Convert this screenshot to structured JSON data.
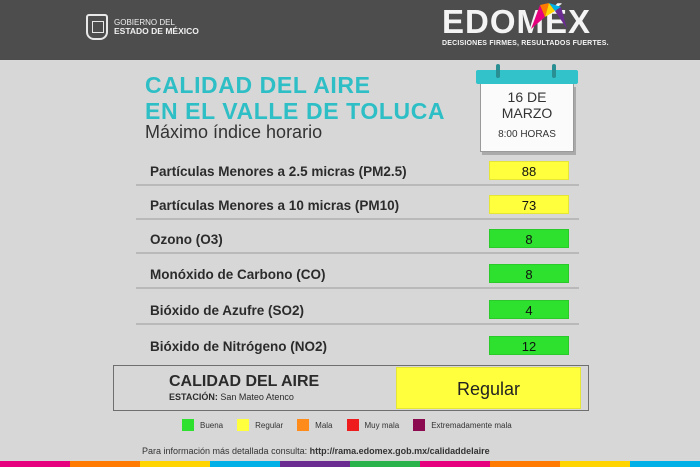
{
  "header": {
    "gov_line1": "GOBIERNO DEL",
    "gov_line2": "ESTADO DE MÉXICO",
    "brand": "EDOMÉX",
    "slogan": "DECISIONES FIRMES, RESULTADOS FUERTES."
  },
  "title": {
    "line1": "CALIDAD DEL AIRE",
    "line2": "EN EL VALLE DE TOLUCA",
    "subtitle": "Máximo índice horario"
  },
  "calendar": {
    "day": "16 DE",
    "month": "MARZO",
    "hour": "8:00 HORAS"
  },
  "pollutants": [
    {
      "label": "Partículas Menores a 2.5 micras (PM2.5)",
      "value": "88",
      "color": "#ffff3d"
    },
    {
      "label": "Partículas Menores a 10 micras (PM10)",
      "value": "73",
      "color": "#ffff3d"
    },
    {
      "label": "Ozono (O3)",
      "value": "8",
      "color": "#2ee12e"
    },
    {
      "label": "Monóxido de Carbono (CO)",
      "value": "8",
      "color": "#2ee12e"
    },
    {
      "label": "Bióxido de Azufre (SO2)",
      "value": "4",
      "color": "#2ee12e"
    },
    {
      "label": "Bióxido de Nitrógeno (NO2)",
      "value": "12",
      "color": "#2ee12e"
    }
  ],
  "summary": {
    "title": "CALIDAD DEL AIRE",
    "station_label": "ESTACIÓN:",
    "station_name": "San Mateo Atenco",
    "status": "Regular",
    "status_color": "#ffff3d"
  },
  "legend": [
    {
      "label": "Buena",
      "color": "#2ee12e"
    },
    {
      "label": "Regular",
      "color": "#ffff3d"
    },
    {
      "label": "Mala",
      "color": "#ff8c1a"
    },
    {
      "label": "Muy mala",
      "color": "#ee1c1c"
    },
    {
      "label": "Extremadamente mala",
      "color": "#8b0a50"
    }
  ],
  "footer": {
    "info_text": "Para información más detallada consulta:",
    "url": "http://rama.edomex.gob.mx/calidaddelaire"
  }
}
